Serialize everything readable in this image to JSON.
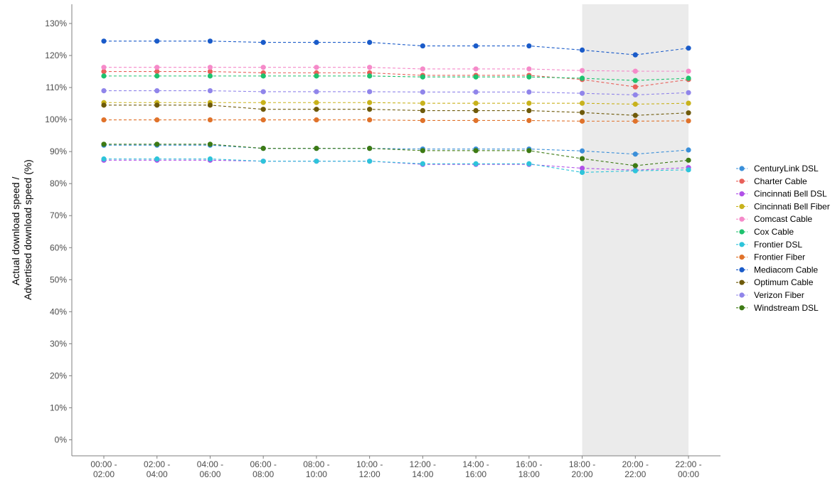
{
  "chart_data": {
    "type": "line",
    "title": "",
    "xlabel": "",
    "ylabel_lines": [
      "Actual download speed /",
      "Advertised download speed (%)"
    ],
    "categories": [
      "00:00 - 02:00",
      "02:00 - 04:00",
      "04:00 - 06:00",
      "06:00 - 08:00",
      "08:00 - 10:00",
      "10:00 - 12:00",
      "12:00 - 14:00",
      "14:00 - 16:00",
      "16:00 - 18:00",
      "18:00 - 20:00",
      "20:00 - 22:00",
      "22:00 - 00:00"
    ],
    "category_lines": [
      [
        "00:00 -",
        "02:00"
      ],
      [
        "02:00 -",
        "04:00"
      ],
      [
        "04:00 -",
        "06:00"
      ],
      [
        "06:00 -",
        "08:00"
      ],
      [
        "08:00 -",
        "10:00"
      ],
      [
        "10:00 -",
        "12:00"
      ],
      [
        "12:00 -",
        "14:00"
      ],
      [
        "14:00 -",
        "16:00"
      ],
      [
        "16:00 -",
        "18:00"
      ],
      [
        "18:00 -",
        "20:00"
      ],
      [
        "20:00 -",
        "22:00"
      ],
      [
        "22:00 -",
        "00:00"
      ]
    ],
    "ylim": [
      -5,
      136
    ],
    "yticks": [
      0,
      10,
      20,
      30,
      40,
      50,
      60,
      70,
      80,
      90,
      100,
      110,
      120,
      130
    ],
    "ytick_labels": [
      "0%",
      "10%",
      "20%",
      "30%",
      "40%",
      "50%",
      "60%",
      "70%",
      "80%",
      "90%",
      "100%",
      "110%",
      "120%",
      "130%"
    ],
    "highlight_range": [
      "18:00 - 20:00",
      "22:00 - 00:00"
    ],
    "highlight_color": "#ebebeb",
    "grid": false,
    "legend_position": "right",
    "series": [
      {
        "name": "CenturyLink DSL",
        "color": "#3a8fd9",
        "values": [
          92.0,
          92.0,
          92.0,
          91.0,
          91.0,
          91.0,
          90.8,
          90.8,
          90.8,
          90.2,
          89.2,
          90.5
        ]
      },
      {
        "name": "Charter Cable",
        "color": "#e8605a",
        "values": [
          115.0,
          115.0,
          115.0,
          114.6,
          114.6,
          114.6,
          113.8,
          113.8,
          113.8,
          112.5,
          110.2,
          112.5
        ]
      },
      {
        "name": "Cincinnati Bell DSL",
        "color": "#b150e8",
        "values": [
          87.3,
          87.3,
          87.3,
          87.0,
          87.0,
          87.0,
          86.0,
          86.0,
          86.0,
          84.8,
          84.2,
          85.0
        ]
      },
      {
        "name": "Cincinnati Bell Fiber",
        "color": "#c8b21c",
        "values": [
          105.3,
          105.3,
          105.3,
          105.3,
          105.3,
          105.3,
          105.1,
          105.1,
          105.1,
          105.1,
          104.8,
          105.1
        ]
      },
      {
        "name": "Comcast Cable",
        "color": "#f58ac9",
        "values": [
          116.3,
          116.3,
          116.3,
          116.3,
          116.3,
          116.3,
          115.8,
          115.8,
          115.8,
          115.3,
          115.1,
          115.1
        ]
      },
      {
        "name": "Cox Cable",
        "color": "#1ec26e",
        "values": [
          113.6,
          113.6,
          113.6,
          113.6,
          113.6,
          113.6,
          113.3,
          113.3,
          113.3,
          112.9,
          112.2,
          112.9
        ]
      },
      {
        "name": "Frontier DSL",
        "color": "#2ec4da",
        "values": [
          87.7,
          87.7,
          87.7,
          87.0,
          87.0,
          87.0,
          86.2,
          86.2,
          86.2,
          83.5,
          84.0,
          84.3
        ]
      },
      {
        "name": "Frontier Fiber",
        "color": "#e0722a",
        "values": [
          99.9,
          99.9,
          99.9,
          99.9,
          99.9,
          99.9,
          99.7,
          99.7,
          99.7,
          99.5,
          99.5,
          99.6
        ]
      },
      {
        "name": "Mediacom Cable",
        "color": "#1a5bc9",
        "values": [
          124.5,
          124.5,
          124.5,
          124.1,
          124.1,
          124.1,
          123.0,
          123.0,
          123.0,
          121.7,
          120.2,
          122.3
        ]
      },
      {
        "name": "Optimum Cable",
        "color": "#6e5a0a",
        "values": [
          104.5,
          104.5,
          104.5,
          103.2,
          103.2,
          103.2,
          102.8,
          102.8,
          102.8,
          102.2,
          101.3,
          102.1
        ]
      },
      {
        "name": "Verizon Fiber",
        "color": "#9085ea",
        "values": [
          109.0,
          109.0,
          109.0,
          108.7,
          108.7,
          108.7,
          108.6,
          108.6,
          108.6,
          108.2,
          107.7,
          108.4
        ]
      },
      {
        "name": "Windstream DSL",
        "color": "#3d7a14",
        "values": [
          92.3,
          92.3,
          92.3,
          91.0,
          91.0,
          91.0,
          90.3,
          90.3,
          90.3,
          87.8,
          85.6,
          87.3
        ]
      }
    ]
  }
}
